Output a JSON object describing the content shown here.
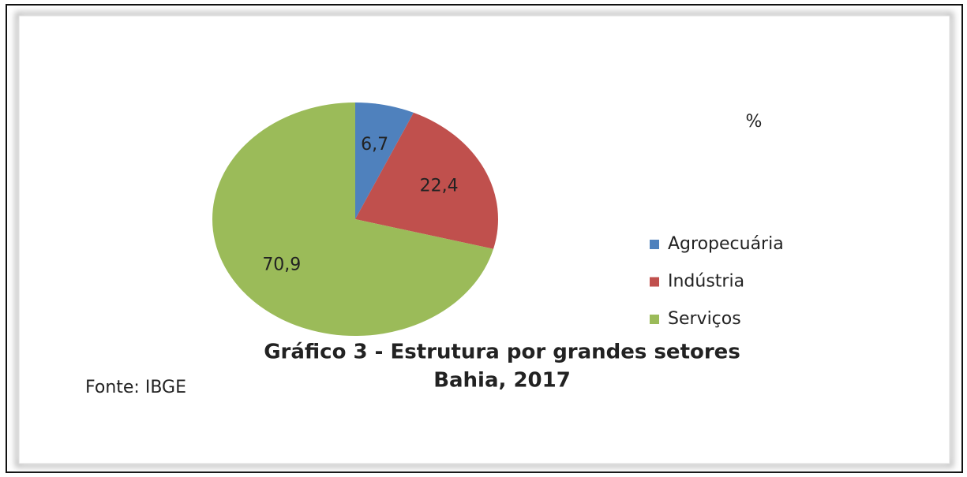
{
  "chart_data": {
    "type": "pie",
    "title": "Gráfico 3 - Estrutura por grandes setores",
    "subtitle": "Bahia, 2017",
    "unit_label": "%",
    "source": "Fonte: IBGE",
    "categories": [
      "Agropecuária",
      "Indústria",
      "Serviços"
    ],
    "values": [
      6.7,
      22.4,
      70.9
    ],
    "value_labels": [
      "6,7",
      "22,4",
      "70,9"
    ],
    "colors": [
      "#4f81bd",
      "#c0504d",
      "#9bbb59"
    ],
    "legend": "right"
  }
}
